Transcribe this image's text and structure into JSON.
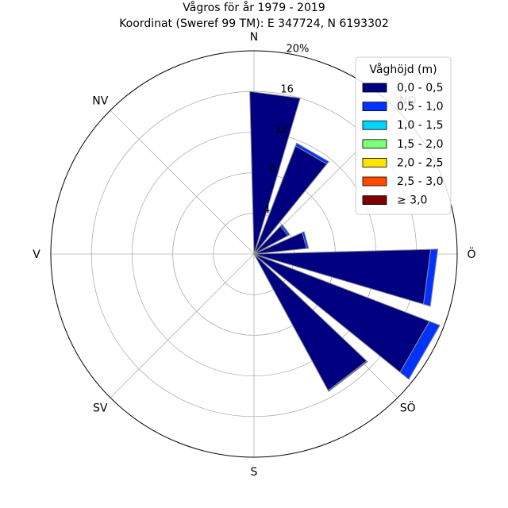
{
  "chart_data": {
    "type": "windrose",
    "title": "Vågros för år 1979 - 2019",
    "subtitle": "Koordinat (Sweref 99 TM): E 347724, N 6193302",
    "direction_labels": [
      "N",
      "NO",
      "Ö",
      "SÖ",
      "S",
      "SV",
      "V",
      "NV"
    ],
    "radial_ticks": [
      "4",
      "8",
      "12",
      "16",
      "20%"
    ],
    "radial_tick_values": [
      4,
      8,
      12,
      16,
      20
    ],
    "rmax": 20,
    "legend": {
      "title": "Våghöjd (m)",
      "placement": "top-right",
      "entries": [
        {
          "label": "0,0 - 0,5",
          "color": "#000080"
        },
        {
          "label": "0,5 - 1,0",
          "color": "#0033ff"
        },
        {
          "label": "1,0 - 1,5",
          "color": "#00d4ff"
        },
        {
          "label": "1,5 - 2,0",
          "color": "#7dff7a"
        },
        {
          "label": "2,0 - 2,5",
          "color": "#ffe500"
        },
        {
          "label": "2,5 - 3,0",
          "color": "#ff4a00"
        },
        {
          "label": "≥ 3,0",
          "color": "#800000"
        }
      ]
    },
    "sector_width_deg": 18,
    "sectors": [
      {
        "direction_deg": 7.5,
        "values": [
          16.0,
          0.0,
          0,
          0,
          0,
          0,
          0
        ]
      },
      {
        "direction_deg": 30,
        "values": [
          11.4,
          0.3,
          0,
          0,
          0,
          0,
          0
        ]
      },
      {
        "direction_deg": 52.5,
        "values": [
          3.8,
          0.2,
          0,
          0,
          0,
          0,
          0
        ]
      },
      {
        "direction_deg": 75,
        "values": [
          5.2,
          0.2,
          0,
          0,
          0,
          0,
          0
        ]
      },
      {
        "direction_deg": 97.5,
        "values": [
          17.4,
          0.7,
          0,
          0,
          0,
          0,
          0
        ]
      },
      {
        "direction_deg": 120,
        "values": [
          18.5,
          1.1,
          0,
          0,
          0,
          0,
          0
        ]
      },
      {
        "direction_deg": 142.5,
        "values": [
          15.3,
          0.1,
          0,
          0,
          0,
          0,
          0
        ]
      }
    ]
  }
}
